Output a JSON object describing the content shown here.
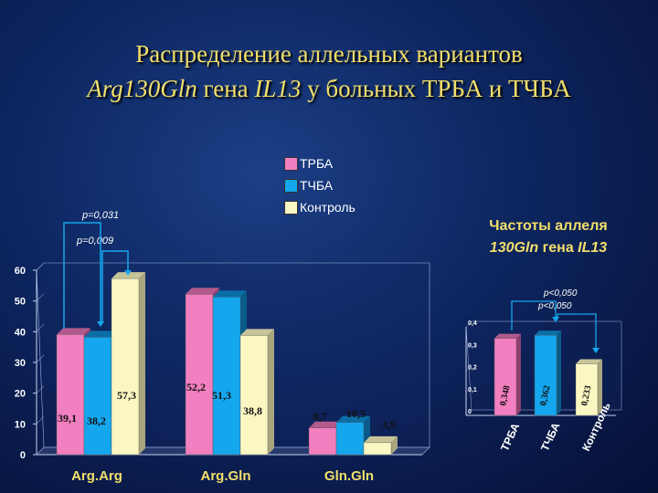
{
  "slide": {
    "title_line1": "Распределение аллельных вариантов",
    "title_line2_italic1": "Arg130Gln",
    "title_line2_mid": " гена ",
    "title_line2_italic2": "IL13",
    "title_line2_end": " у больных ТРБА и ТЧБА",
    "subtitle_line1": "Частоты аллеля",
    "subtitle_italic": "130Gln",
    "subtitle_end": " гена ",
    "subtitle_italic2": "IL13",
    "p_values": [
      "p=0,031",
      "p=0,009"
    ]
  },
  "colors": {
    "trba": "#f27fbf",
    "tchba": "#14a7ee",
    "control": "#fbf7c3",
    "axis_text": "#ffffff",
    "accent": "#f2df6a"
  },
  "chart_data": [
    {
      "type": "bar",
      "categories": [
        "Arg.Arg",
        "Arg.Gln",
        "Gln.Gln"
      ],
      "series": [
        {
          "name": "ТРБА",
          "values": [
            39.1,
            52.2,
            8.7
          ],
          "labels": [
            "39,1",
            "52,2",
            "8,7"
          ]
        },
        {
          "name": "ТЧБА",
          "values": [
            38.2,
            51.3,
            10.5
          ],
          "labels": [
            "38,2",
            "51,3",
            "10,5"
          ]
        },
        {
          "name": "Контроль",
          "values": [
            57.3,
            38.8,
            3.9
          ],
          "labels": [
            "57,3",
            "38,8",
            "3,9"
          ]
        }
      ],
      "ylim": [
        0,
        60
      ],
      "yticks": [
        "0",
        "10",
        "20",
        "30",
        "40",
        "50",
        "60"
      ],
      "legend_position": "top",
      "annotations": [
        "p=0,031",
        "p=0,009"
      ]
    },
    {
      "type": "bar",
      "categories": [
        "ТРБА",
        "ТЧБА",
        "Контроль"
      ],
      "values": [
        0.348,
        0.362,
        0.233
      ],
      "labels": [
        "0,348",
        "0,362",
        "0,233"
      ],
      "ylim": [
        0,
        0.4
      ],
      "yticks": [
        "0",
        "0,1",
        "0,2",
        "0,3",
        "0,4"
      ],
      "annotations": [
        "p<0,050",
        "p<0,050"
      ]
    }
  ]
}
